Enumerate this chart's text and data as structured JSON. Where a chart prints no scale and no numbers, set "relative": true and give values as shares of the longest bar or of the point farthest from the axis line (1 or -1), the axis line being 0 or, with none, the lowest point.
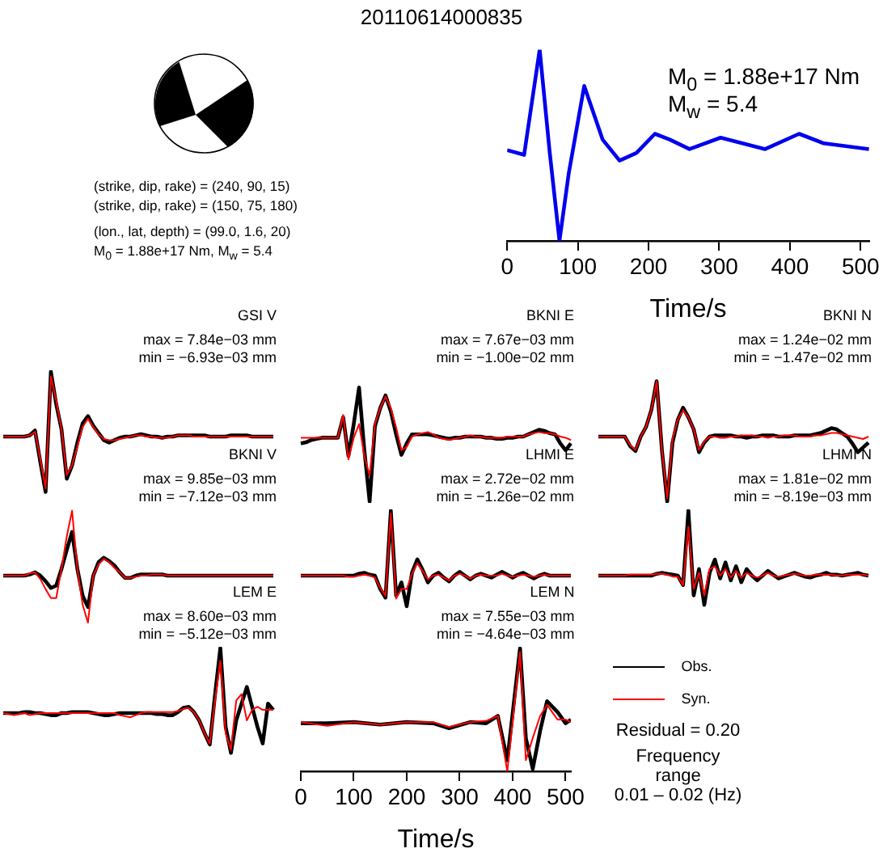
{
  "chart_data": [
    {
      "type": "other",
      "title": "20110614000835",
      "annotations": [
        "(strike, dip, rake) = (240, 90, 15)",
        "(strike, dip, rake) = (150, 75, 180)",
        "(lon., lat, depth) = (99.0, 1.6, 20)",
        "M$_{0}$ = 1.88e+17 Nm, M$_{w}$ = 5.4"
      ]
    },
    {
      "type": "line",
      "relative": true,
      "xlabel": "Time/s",
      "xlim": [
        0,
        512
      ],
      "xticks": [
        0,
        100,
        200,
        300,
        400,
        500
      ],
      "annotations": [
        "M$_{0}$ = 1.88e+17 Nm",
        "M$_{w}$ = 5.4"
      ],
      "x": [
        0,
        24,
        46,
        60,
        74,
        87,
        109,
        135,
        159,
        183,
        209,
        230,
        258,
        302,
        365,
        413,
        448,
        512
      ],
      "series": [
        {
          "color": "#0000ee",
          "values": [
            0.475,
            0.45,
            1,
            0.47,
            0,
            0.35,
            0.81,
            0.53,
            0.42,
            0.46,
            0.56,
            0.53,
            0.48,
            0.54,
            0.48,
            0.56,
            0.51,
            0.48
          ]
        }
      ]
    },
    {
      "type": "line",
      "relative": true,
      "title": "GSI V",
      "annotations": [
        "max = 7.84e−03 mm",
        "min = −6.93e−03 mm"
      ],
      "categories": [
        null,
        null,
        null,
        null,
        null,
        null,
        null,
        null,
        null,
        null,
        null,
        null,
        null,
        null,
        null,
        null,
        null,
        null,
        null,
        null,
        null,
        null,
        null,
        null,
        null,
        null,
        null,
        null,
        null,
        null,
        null,
        null,
        null,
        null,
        null,
        null,
        null,
        null,
        null,
        null,
        null,
        null,
        null,
        null,
        null,
        null,
        null,
        null,
        null,
        null,
        null,
        null
      ],
      "series": [
        {
          "color": "#000000",
          "values": [
            0.46,
            0.46,
            0.46,
            0.46,
            0.46,
            0.47,
            0.51,
            0.25,
            0,
            1,
            0.73,
            0.52,
            0.11,
            0.22,
            0.41,
            0.57,
            0.63,
            0.55,
            0.49,
            0.43,
            0.41,
            0.43,
            0.45,
            0.46,
            0.46,
            0.47,
            0.48,
            0.47,
            0.46,
            0.46,
            0.45,
            0.46,
            0.46,
            0.47,
            0.47,
            0.47,
            0.47,
            0.47,
            0.47,
            0.46,
            0.46,
            0.46,
            0.46,
            0.47,
            0.47,
            0.47,
            0.47,
            0.46,
            0.46,
            0.46,
            0.46,
            0.46
          ]
        },
        {
          "color": "#ff0000",
          "values": [
            0.46,
            0.46,
            0.46,
            0.46,
            0.46,
            0.47,
            0.5,
            0.27,
            0.03,
            0.96,
            0.76,
            0.52,
            0.14,
            0.22,
            0.38,
            0.54,
            0.61,
            0.54,
            0.48,
            0.44,
            0.43,
            0.43,
            0.44,
            0.45,
            0.46,
            0.47,
            0.47,
            0.46,
            0.46,
            0.45,
            0.45,
            0.45,
            0.46,
            0.47,
            0.47,
            0.47,
            0.46,
            0.46,
            0.46,
            0.46,
            0.46,
            0.46,
            0.46,
            0.46,
            0.46,
            0.46,
            0.46,
            0.46,
            0.46,
            0.46,
            0.46,
            0.46
          ]
        }
      ]
    },
    {
      "type": "line",
      "relative": true,
      "title": "BKNI E",
      "annotations": [
        "max = 7.67e−03 mm",
        "min = −1.00e−02 mm"
      ],
      "categories": [
        null,
        null,
        null,
        null,
        null,
        null,
        null,
        null,
        null,
        null,
        null,
        null,
        null,
        null,
        null,
        null,
        null,
        null,
        null,
        null,
        null,
        null,
        null,
        null,
        null,
        null,
        null,
        null,
        null,
        null,
        null,
        null,
        null,
        null,
        null,
        null,
        null,
        null,
        null,
        null,
        null,
        null,
        null,
        null,
        null,
        null,
        null,
        null,
        null,
        null,
        null,
        null
      ],
      "series": [
        {
          "color": "#000000",
          "values": [
            0.51,
            0.52,
            0.54,
            0.55,
            0.56,
            0.56,
            0.56,
            0.56,
            0.74,
            0.4,
            0.68,
            1,
            0.45,
            0,
            0.66,
            0.82,
            0.93,
            0.79,
            0.59,
            0.41,
            0.51,
            0.59,
            0.59,
            0.59,
            0.59,
            0.58,
            0.57,
            0.56,
            0.55,
            0.56,
            0.56,
            0.57,
            0.57,
            0.57,
            0.57,
            0.56,
            0.56,
            0.55,
            0.55,
            0.56,
            0.56,
            0.57,
            0.57,
            0.59,
            0.61,
            0.63,
            0.62,
            0.6,
            0.59,
            0.51,
            0.45,
            0.51
          ]
        },
        {
          "color": "#ff0000",
          "values": [
            0.56,
            0.56,
            0.56,
            0.56,
            0.56,
            0.56,
            0.56,
            0.56,
            0.76,
            0.37,
            0.56,
            0.68,
            0.4,
            0.23,
            0.68,
            0.82,
            0.92,
            0.82,
            0.65,
            0.45,
            0.48,
            0.57,
            0.59,
            0.6,
            0.61,
            0.59,
            0.56,
            0.55,
            0.54,
            0.55,
            0.56,
            0.57,
            0.58,
            0.57,
            0.57,
            0.56,
            0.56,
            0.56,
            0.56,
            0.57,
            0.57,
            0.57,
            0.57,
            0.59,
            0.6,
            0.61,
            0.6,
            0.6,
            0.59,
            0.57,
            0.56,
            0.54
          ]
        }
      ]
    },
    {
      "type": "line",
      "relative": true,
      "title": "BKNI N",
      "annotations": [
        "max = 1.24e−02 mm",
        "min = −1.47e−02 mm"
      ],
      "categories": [
        null,
        null,
        null,
        null,
        null,
        null,
        null,
        null,
        null,
        null,
        null,
        null,
        null,
        null,
        null,
        null,
        null,
        null,
        null,
        null,
        null,
        null,
        null,
        null,
        null,
        null,
        null,
        null,
        null,
        null,
        null,
        null,
        null,
        null,
        null,
        null,
        null,
        null,
        null,
        null,
        null,
        null,
        null,
        null,
        null,
        null,
        null,
        null,
        null,
        null,
        null,
        null
      ],
      "series": [
        {
          "color": "#000000",
          "values": [
            0.54,
            0.54,
            0.54,
            0.54,
            0.54,
            0.54,
            0.46,
            0.42,
            0.54,
            0.62,
            0.76,
            1,
            0.43,
            0,
            0.49,
            0.68,
            0.78,
            0.7,
            0.6,
            0.41,
            0.49,
            0.54,
            0.55,
            0.55,
            0.55,
            0.55,
            0.54,
            0.54,
            0.53,
            0.54,
            0.54,
            0.55,
            0.55,
            0.55,
            0.54,
            0.54,
            0.54,
            0.55,
            0.55,
            0.55,
            0.55,
            0.56,
            0.57,
            0.59,
            0.61,
            0.6,
            0.57,
            0.54,
            0.48,
            0.41,
            0.45,
            0.49
          ]
        },
        {
          "color": "#ff0000",
          "values": [
            0.54,
            0.54,
            0.54,
            0.54,
            0.54,
            0.54,
            0.47,
            0.43,
            0.54,
            0.62,
            0.76,
            1,
            0.43,
            0.03,
            0.52,
            0.68,
            0.76,
            0.7,
            0.6,
            0.43,
            0.5,
            0.54,
            0.54,
            0.53,
            0.53,
            0.54,
            0.54,
            0.55,
            0.55,
            0.55,
            0.54,
            0.54,
            0.53,
            0.54,
            0.54,
            0.55,
            0.55,
            0.55,
            0.54,
            0.54,
            0.54,
            0.55,
            0.55,
            0.56,
            0.57,
            0.57,
            0.56,
            0.55,
            0.54,
            0.53,
            0.52,
            0.54
          ]
        }
      ]
    },
    {
      "type": "line",
      "relative": true,
      "title": "BKNI V",
      "annotations": [
        "max = 9.85e−03 mm",
        "min = −7.12e−03 mm"
      ],
      "categories": [
        null,
        null,
        null,
        null,
        null,
        null,
        null,
        null,
        null,
        null,
        null,
        null,
        null,
        null,
        null,
        null,
        null,
        null,
        null,
        null,
        null,
        null,
        null,
        null,
        null,
        null,
        null,
        null,
        null,
        null,
        null,
        null,
        null,
        null,
        null,
        null,
        null,
        null,
        null,
        null,
        null,
        null,
        null,
        null,
        null,
        null,
        null,
        null,
        null,
        null,
        null,
        null
      ],
      "series": [
        {
          "color": "#000000",
          "values": [
            0.42,
            0.42,
            0.42,
            0.42,
            0.42,
            0.43,
            0.45,
            0.42,
            0.37,
            0.31,
            0.33,
            0.48,
            0.65,
            0.81,
            0.48,
            0.24,
            0.14,
            0.42,
            0.54,
            0.58,
            0.55,
            0.51,
            0.45,
            0.4,
            0.4,
            0.42,
            0.43,
            0.43,
            0.43,
            0.43,
            0.43,
            0.42,
            0.42,
            0.42,
            0.42,
            0.42,
            0.42,
            0.42,
            0.42,
            0.42,
            0.42,
            0.42,
            0.42,
            0.42,
            0.42,
            0.42,
            0.42,
            0.42,
            0.42,
            0.42,
            0.42,
            0.42
          ]
        },
        {
          "color": "#ff0000",
          "values": [
            0.42,
            0.42,
            0.42,
            0.42,
            0.42,
            0.44,
            0.45,
            0.39,
            0.3,
            0.22,
            0.22,
            0.48,
            0.77,
            1,
            0.48,
            0.16,
            0,
            0.42,
            0.52,
            0.57,
            0.54,
            0.49,
            0.45,
            0.4,
            0.4,
            0.41,
            0.42,
            0.42,
            0.43,
            0.43,
            0.43,
            0.42,
            0.42,
            0.42,
            0.42,
            0.42,
            0.42,
            0.42,
            0.42,
            0.42,
            0.42,
            0.42,
            0.42,
            0.42,
            0.42,
            0.42,
            0.42,
            0.42,
            0.42,
            0.42,
            0.42,
            0.42
          ]
        }
      ]
    },
    {
      "type": "line",
      "relative": true,
      "title": "LHMI E",
      "annotations": [
        "max = 2.72e−02 mm",
        "min = −1.26e−02 mm"
      ],
      "categories": [
        null,
        null,
        null,
        null,
        null,
        null,
        null,
        null,
        null,
        null,
        null,
        null,
        null,
        null,
        null,
        null,
        null,
        null,
        null,
        null,
        null,
        null,
        null,
        null,
        null,
        null,
        null,
        null,
        null,
        null,
        null,
        null,
        null,
        null,
        null,
        null,
        null,
        null,
        null,
        null,
        null,
        null,
        null,
        null,
        null,
        null,
        null,
        null,
        null,
        null,
        null,
        null
      ],
      "series": [
        {
          "color": "#000000",
          "values": [
            0.32,
            0.32,
            0.32,
            0.32,
            0.32,
            0.32,
            0.32,
            0.32,
            0.32,
            0.32,
            0.32,
            0.34,
            0.35,
            0.33,
            0.32,
            0.18,
            0.09,
            1,
            0.11,
            0.25,
            0,
            0.35,
            0.49,
            0.38,
            0.25,
            0.32,
            0.35,
            0.3,
            0.26,
            0.32,
            0.36,
            0.32,
            0.28,
            0.32,
            0.34,
            0.32,
            0.3,
            0.33,
            0.36,
            0.33,
            0.3,
            0.33,
            0.35,
            0.32,
            0.29,
            0.32,
            0.34,
            0.32,
            0.32,
            0.32,
            0.32,
            0.32
          ]
        },
        {
          "color": "#ff0000",
          "values": [
            0.32,
            0.32,
            0.32,
            0.32,
            0.32,
            0.32,
            0.32,
            0.32,
            0.32,
            0.31,
            0.31,
            0.32,
            0.33,
            0.32,
            0.3,
            0.19,
            0.11,
            0.97,
            0.08,
            0.18,
            0.18,
            0.34,
            0.45,
            0.37,
            0.28,
            0.32,
            0.33,
            0.3,
            0.27,
            0.32,
            0.34,
            0.32,
            0.29,
            0.32,
            0.33,
            0.32,
            0.32,
            0.32,
            0.34,
            0.32,
            0.31,
            0.32,
            0.33,
            0.32,
            0.31,
            0.32,
            0.33,
            0.32,
            0.32,
            0.32,
            0.32,
            0.32
          ]
        }
      ]
    },
    {
      "type": "line",
      "relative": true,
      "title": "LHMI N",
      "annotations": [
        "max = 1.81e−02 mm",
        "min = −8.19e−03 mm"
      ],
      "categories": [
        null,
        null,
        null,
        null,
        null,
        null,
        null,
        null,
        null,
        null,
        null,
        null,
        null,
        null,
        null,
        null,
        null,
        null,
        null,
        null,
        null,
        null,
        null,
        null,
        null,
        null,
        null,
        null,
        null,
        null,
        null,
        null,
        null,
        null,
        null,
        null,
        null,
        null,
        null,
        null,
        null,
        null,
        null,
        null,
        null,
        null,
        null,
        null,
        null,
        null,
        null,
        null
      ],
      "series": [
        {
          "color": "#000000",
          "values": [
            0.31,
            0.31,
            0.31,
            0.31,
            0.31,
            0.31,
            0.31,
            0.31,
            0.31,
            0.31,
            0.31,
            0.33,
            0.34,
            0.33,
            0.32,
            0.31,
            0.21,
            1,
            0.1,
            0.38,
            0,
            0.34,
            0.48,
            0.28,
            0.45,
            0.26,
            0.41,
            0.24,
            0.38,
            0.31,
            0.26,
            0.31,
            0.36,
            0.32,
            0.28,
            0.3,
            0.32,
            0.34,
            0.32,
            0.3,
            0.29,
            0.31,
            0.32,
            0.34,
            0.32,
            0.32,
            0.31,
            0.32,
            0.33,
            0.34,
            0.32,
            0.31
          ]
        },
        {
          "color": "#ff0000",
          "values": [
            0.31,
            0.31,
            0.31,
            0.31,
            0.31,
            0.31,
            0.32,
            0.32,
            0.32,
            0.32,
            0.32,
            0.33,
            0.33,
            0.32,
            0.3,
            0.3,
            0.21,
            0.83,
            0.17,
            0.34,
            0.1,
            0.38,
            0.41,
            0.31,
            0.38,
            0.29,
            0.36,
            0.29,
            0.34,
            0.31,
            0.29,
            0.31,
            0.34,
            0.31,
            0.3,
            0.31,
            0.32,
            0.33,
            0.32,
            0.31,
            0.31,
            0.32,
            0.32,
            0.32,
            0.32,
            0.31,
            0.31,
            0.32,
            0.32,
            0.32,
            0.32,
            0.31
          ]
        }
      ]
    },
    {
      "type": "line",
      "relative": true,
      "title": "LEM E",
      "annotations": [
        "max = 8.60e−03 mm",
        "min = −5.12e−03 mm"
      ],
      "categories": [
        null,
        null,
        null,
        null,
        null,
        null,
        null,
        null,
        null,
        null,
        null,
        null,
        null,
        null,
        null,
        null,
        null,
        null,
        null,
        null,
        null,
        null,
        null,
        null,
        null,
        null,
        null,
        null,
        null,
        null,
        null,
        null,
        null,
        null,
        null,
        null,
        null,
        null,
        null,
        null,
        null,
        null,
        null,
        null,
        null,
        null,
        null,
        null,
        null,
        null,
        null,
        null
      ],
      "series": [
        {
          "color": "#000000",
          "values": [
            0.38,
            0.38,
            0.38,
            0.38,
            0.39,
            0.39,
            0.38,
            0.38,
            0.37,
            0.36,
            0.36,
            0.38,
            0.38,
            0.39,
            0.39,
            0.39,
            0.39,
            0.38,
            0.37,
            0.36,
            0.36,
            0.37,
            0.38,
            0.38,
            0.38,
            0.38,
            0.38,
            0.38,
            0.38,
            0.37,
            0.37,
            0.36,
            0.36,
            0.39,
            0.43,
            0.44,
            0.39,
            0.31,
            0.19,
            0.08,
            0.56,
            1,
            0.25,
            0,
            0.31,
            0.47,
            0.63,
            0.44,
            0.25,
            0.09,
            0.47,
            0.41
          ]
        },
        {
          "color": "#ff0000",
          "values": [
            0.38,
            0.37,
            0.36,
            0.37,
            0.38,
            0.36,
            0.37,
            0.38,
            0.38,
            0.38,
            0.38,
            0.38,
            0.38,
            0.38,
            0.38,
            0.38,
            0.38,
            0.38,
            0.38,
            0.38,
            0.38,
            0.38,
            0.36,
            0.35,
            0.34,
            0.36,
            0.38,
            0.39,
            0.39,
            0.39,
            0.39,
            0.39,
            0.39,
            0.4,
            0.42,
            0.43,
            0.39,
            0.31,
            0.19,
            0.09,
            0.5,
            0.88,
            0.19,
            0.03,
            0.5,
            0.56,
            0.31,
            0.41,
            0.44,
            0.41,
            0.41,
            0.41
          ]
        }
      ]
    },
    {
      "type": "line",
      "relative": true,
      "title": "LEM N",
      "annotations": [
        "max = 7.55e−03 mm",
        "min = −4.64e−03 mm",
        "Residual = 0.20",
        "Frequency range\n0.01 – 0.02 (Hz)"
      ],
      "xlabel": "Time/s",
      "xlim": [
        0,
        510
      ],
      "xticks": [
        0,
        100,
        200,
        300,
        400,
        500
      ],
      "legend": "right",
      "x": [
        0,
        50,
        100,
        150,
        200,
        250,
        280,
        320,
        350,
        372,
        390,
        414,
        425,
        438,
        452,
        465,
        485,
        500,
        510
      ],
      "series": [
        {
          "name": "Obs.",
          "color": "#000000",
          "values": [
            0.39,
            0.39,
            0.4,
            0.38,
            0.4,
            0.39,
            0.35,
            0.4,
            0.39,
            0.45,
            0.09,
            1,
            0.27,
            0.02,
            0.33,
            0.57,
            0.48,
            0.39,
            0.42
          ]
        },
        {
          "name": "Syn.",
          "color": "#ff0000",
          "values": [
            0.4,
            0.37,
            0.4,
            0.38,
            0.4,
            0.4,
            0.36,
            0.4,
            0.41,
            0.45,
            0,
            0.97,
            0.09,
            0.27,
            0.45,
            0.54,
            0.42,
            0.42,
            0.4
          ]
        }
      ]
    }
  ]
}
